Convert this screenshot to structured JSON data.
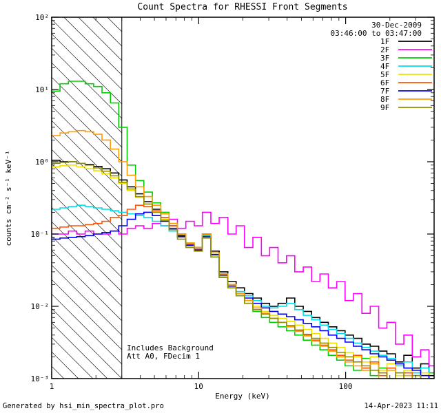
{
  "title": "Count Spectra for RHESSI Front Segments",
  "annotations": {
    "date": "30-Dec-2009",
    "time_range": "03:46:00 to 03:47:00",
    "note_line1": "Includes Background",
    "note_line2": "Att A0, FDecim 1"
  },
  "footer": {
    "left": "Generated by hsi_min_spectra_plot.pro",
    "right": "14-Apr-2023 11:11"
  },
  "chart_data": {
    "type": "line",
    "subtype": "log-log step spectra",
    "title": "Count Spectra for RHESSI Front Segments",
    "xlabel": "Energy (keV)",
    "ylabel": "counts cm⁻² s⁻¹ keV⁻¹",
    "xscale": "log",
    "yscale": "log",
    "xlim": [
      1,
      400
    ],
    "ylim": [
      0.001,
      100
    ],
    "grid": false,
    "legend_position": "top-right",
    "x_ticks": [
      {
        "value": 1,
        "label": "1"
      },
      {
        "value": 10,
        "label": "10"
      },
      {
        "value": 100,
        "label": "100"
      }
    ],
    "y_ticks": [
      {
        "value": 100,
        "label": "10²"
      },
      {
        "value": 10,
        "label": "10¹"
      },
      {
        "value": 1,
        "label": "10⁰"
      },
      {
        "value": 0.1,
        "label": "10⁻¹"
      },
      {
        "value": 0.01,
        "label": "10⁻²"
      },
      {
        "value": 0.001,
        "label": "10⁻³"
      }
    ],
    "excluded_region": {
      "from": 1,
      "to": 3,
      "style": "diagonal-hatch"
    },
    "energies": [
      1.0,
      1.14,
      1.3,
      1.48,
      1.69,
      1.93,
      2.2,
      2.51,
      2.86,
      3.26,
      3.72,
      4.24,
      4.84,
      5.52,
      6.29,
      7.17,
      8.18,
      9.33,
      10.6,
      12.1,
      13.8,
      15.8,
      18.0,
      20.5,
      23.4,
      26.7,
      30.4,
      34.7,
      39.6,
      45.1,
      51.5,
      58.7,
      66.9,
      76.3,
      87.0,
      99.2,
      113,
      129,
      147,
      168,
      191,
      218,
      249,
      284,
      324,
      369
    ],
    "series": [
      {
        "name": "1F",
        "color": "#000000",
        "values": [
          1.05,
          1.0,
          1.0,
          0.95,
          0.92,
          0.86,
          0.8,
          0.7,
          0.56,
          0.45,
          0.36,
          0.28,
          0.22,
          0.17,
          0.13,
          0.095,
          0.072,
          0.065,
          0.1,
          0.058,
          0.03,
          0.022,
          0.018,
          0.015,
          0.013,
          0.011,
          0.01,
          0.011,
          0.013,
          0.01,
          0.0085,
          0.007,
          0.006,
          0.0052,
          0.0046,
          0.004,
          0.0036,
          0.003,
          0.0028,
          0.0024,
          0.0022,
          0.0017,
          0.0021,
          0.0014,
          0.0016,
          0.0011
        ]
      },
      {
        "name": "2F",
        "color": "#FF00FF",
        "values": [
          0.1,
          0.1,
          0.11,
          0.1,
          0.11,
          0.1,
          0.1,
          0.11,
          0.1,
          0.12,
          0.13,
          0.12,
          0.14,
          0.13,
          0.16,
          0.12,
          0.15,
          0.13,
          0.2,
          0.14,
          0.17,
          0.1,
          0.13,
          0.065,
          0.09,
          0.05,
          0.065,
          0.04,
          0.05,
          0.03,
          0.035,
          0.022,
          0.028,
          0.018,
          0.022,
          0.012,
          0.015,
          0.008,
          0.01,
          0.005,
          0.006,
          0.003,
          0.004,
          0.002,
          0.0025,
          0.0015
        ]
      },
      {
        "name": "3F",
        "color": "#00D000",
        "values": [
          9.5,
          12,
          13,
          13,
          12,
          11,
          9.0,
          6.5,
          3.0,
          0.9,
          0.55,
          0.38,
          0.27,
          0.2,
          0.14,
          0.1,
          0.075,
          0.06,
          0.095,
          0.05,
          0.025,
          0.018,
          0.014,
          0.011,
          0.0085,
          0.007,
          0.006,
          0.0052,
          0.0046,
          0.004,
          0.0034,
          0.0029,
          0.0025,
          0.0021,
          0.0018,
          0.0015,
          0.0013,
          0.0019,
          0.0011,
          0.0014,
          0.0009,
          0.0012,
          0.0008,
          0.0011,
          0.0009,
          0.0012
        ]
      },
      {
        "name": "4F",
        "color": "#00DDE8",
        "values": [
          0.22,
          0.23,
          0.24,
          0.25,
          0.24,
          0.23,
          0.22,
          0.21,
          0.2,
          0.19,
          0.18,
          0.17,
          0.15,
          0.13,
          0.11,
          0.09,
          0.07,
          0.062,
          0.095,
          0.055,
          0.028,
          0.02,
          0.016,
          0.014,
          0.012,
          0.01,
          0.0095,
          0.01,
          0.011,
          0.009,
          0.0075,
          0.0065,
          0.0055,
          0.0048,
          0.0042,
          0.0036,
          0.0031,
          0.0027,
          0.0024,
          0.0021,
          0.0019,
          0.0015,
          0.0017,
          0.0012,
          0.0014,
          0.001
        ]
      },
      {
        "name": "5F",
        "color": "#EFE000",
        "values": [
          0.85,
          0.88,
          0.9,
          0.85,
          0.8,
          0.75,
          0.68,
          0.6,
          0.5,
          0.4,
          0.32,
          0.26,
          0.2,
          0.16,
          0.12,
          0.09,
          0.068,
          0.06,
          0.09,
          0.05,
          0.026,
          0.019,
          0.015,
          0.012,
          0.01,
          0.0085,
          0.0075,
          0.0068,
          0.0062,
          0.0055,
          0.0048,
          0.0042,
          0.0036,
          0.0031,
          0.0027,
          0.0023,
          0.002,
          0.0017,
          0.002,
          0.0013,
          0.0016,
          0.0011,
          0.0013,
          0.001,
          0.0012,
          0.0009
        ]
      },
      {
        "name": "6F",
        "color": "#FF5500",
        "values": [
          0.12,
          0.125,
          0.13,
          0.13,
          0.135,
          0.14,
          0.15,
          0.17,
          0.18,
          0.22,
          0.25,
          0.24,
          0.21,
          0.17,
          0.13,
          0.1,
          0.072,
          0.062,
          0.098,
          0.055,
          0.028,
          0.02,
          0.015,
          0.012,
          0.0095,
          0.008,
          0.0068,
          0.006,
          0.0053,
          0.0046,
          0.004,
          0.0034,
          0.0029,
          0.0025,
          0.0021,
          0.0018,
          0.0021,
          0.0014,
          0.0017,
          0.0011,
          0.0014,
          0.0009,
          0.0012,
          0.0008,
          0.0011,
          0.001
        ]
      },
      {
        "name": "7F",
        "color": "#0000EE",
        "values": [
          0.085,
          0.088,
          0.09,
          0.092,
          0.095,
          0.1,
          0.105,
          0.11,
          0.13,
          0.16,
          0.19,
          0.2,
          0.18,
          0.15,
          0.12,
          0.092,
          0.07,
          0.06,
          0.092,
          0.052,
          0.027,
          0.019,
          0.015,
          0.013,
          0.011,
          0.0095,
          0.0085,
          0.0078,
          0.0072,
          0.0065,
          0.0058,
          0.0052,
          0.0046,
          0.004,
          0.0036,
          0.0032,
          0.0028,
          0.0025,
          0.0022,
          0.002,
          0.0018,
          0.0016,
          0.0014,
          0.0013,
          0.0011,
          0.001
        ]
      },
      {
        "name": "8F",
        "color": "#FF9C00",
        "values": [
          2.3,
          2.5,
          2.6,
          2.7,
          2.6,
          2.4,
          2.0,
          1.5,
          1.0,
          0.65,
          0.45,
          0.33,
          0.25,
          0.19,
          0.14,
          0.1,
          0.075,
          0.065,
          0.1,
          0.055,
          0.028,
          0.02,
          0.015,
          0.012,
          0.0095,
          0.008,
          0.0068,
          0.006,
          0.0052,
          0.0045,
          0.0039,
          0.0033,
          0.0028,
          0.0024,
          0.002,
          0.0017,
          0.0015,
          0.0013,
          0.0016,
          0.001,
          0.0013,
          0.0009,
          0.0011,
          0.0008,
          0.001,
          0.0009
        ]
      },
      {
        "name": "9F",
        "color": "#8F8F00",
        "values": [
          0.95,
          0.98,
          1.0,
          0.95,
          0.9,
          0.82,
          0.74,
          0.64,
          0.52,
          0.42,
          0.33,
          0.26,
          0.2,
          0.155,
          0.115,
          0.085,
          0.065,
          0.058,
          0.088,
          0.048,
          0.025,
          0.018,
          0.014,
          0.011,
          0.009,
          0.0078,
          0.0068,
          0.006,
          0.0054,
          0.0047,
          0.0041,
          0.0036,
          0.0031,
          0.0027,
          0.0023,
          0.002,
          0.0017,
          0.0015,
          0.0013,
          0.0012,
          0.001,
          0.0012,
          0.0009,
          0.0011,
          0.0008,
          0.001
        ]
      }
    ]
  }
}
